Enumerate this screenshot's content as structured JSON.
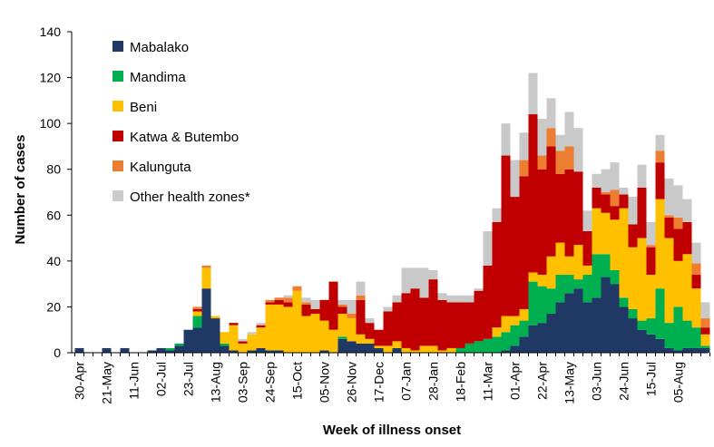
{
  "chart_data": {
    "type": "bar",
    "stacked": true,
    "title": "",
    "xlabel": "Week of illness onset",
    "ylabel": "Number of cases",
    "ylim": [
      0,
      140
    ],
    "yticks": [
      0,
      20,
      40,
      60,
      80,
      100,
      120,
      140
    ],
    "grid": false,
    "legend_position": "top-left",
    "x_tick_labels": [
      {
        "week_index": 0,
        "label": "30-Apr"
      },
      {
        "week_index": 3,
        "label": "21-May"
      },
      {
        "week_index": 6,
        "label": "11-Jun"
      },
      {
        "week_index": 9,
        "label": "02-Jul"
      },
      {
        "week_index": 12,
        "label": "23-Jul"
      },
      {
        "week_index": 15,
        "label": "13-Aug"
      },
      {
        "week_index": 18,
        "label": "03-Sep"
      },
      {
        "week_index": 21,
        "label": "24-Sep"
      },
      {
        "week_index": 24,
        "label": "15-Oct"
      },
      {
        "week_index": 27,
        "label": "05-Nov"
      },
      {
        "week_index": 30,
        "label": "26-Nov"
      },
      {
        "week_index": 33,
        "label": "17-Dec"
      },
      {
        "week_index": 36,
        "label": "07-Jan"
      },
      {
        "week_index": 39,
        "label": "28-Jan"
      },
      {
        "week_index": 42,
        "label": "18-Feb"
      },
      {
        "week_index": 45,
        "label": "11-Mar"
      },
      {
        "week_index": 48,
        "label": "01-Apr"
      },
      {
        "week_index": 51,
        "label": "22-Apr"
      },
      {
        "week_index": 54,
        "label": "13-May"
      },
      {
        "week_index": 57,
        "label": "03-Jun"
      },
      {
        "week_index": 60,
        "label": "24-Jun"
      },
      {
        "week_index": 63,
        "label": "15-Jul"
      },
      {
        "week_index": 66,
        "label": "05-Aug"
      }
    ],
    "series": [
      {
        "name": "Mabalako",
        "color": "#1f3864",
        "values": [
          2,
          0,
          0,
          2,
          0,
          2,
          0,
          0,
          1,
          2,
          1,
          3,
          10,
          11,
          28,
          15,
          3,
          1,
          0,
          1,
          2,
          1,
          1,
          0,
          0,
          0,
          0,
          1,
          0,
          6,
          5,
          4,
          4,
          2,
          0,
          2,
          0,
          0,
          0,
          0,
          0,
          0,
          0,
          0,
          0,
          0,
          0,
          1,
          3,
          7,
          12,
          13,
          17,
          22,
          26,
          28,
          22,
          24,
          33,
          30,
          20,
          15,
          10,
          8,
          6,
          2,
          1,
          2,
          2,
          2
        ]
      },
      {
        "name": "Mandima",
        "color": "#00b050",
        "values": [
          0,
          0,
          0,
          0,
          0,
          0,
          0,
          0,
          0,
          0,
          1,
          1,
          0,
          5,
          0,
          0,
          1,
          0,
          0,
          0,
          0,
          0,
          0,
          0,
          0,
          0,
          0,
          0,
          0,
          1,
          0,
          0,
          0,
          0,
          0,
          0,
          0,
          0,
          0,
          0,
          0,
          0,
          2,
          4,
          5,
          6,
          7,
          8,
          9,
          7,
          19,
          16,
          11,
          12,
          8,
          4,
          12,
          19,
          10,
          6,
          4,
          4,
          4,
          7,
          22,
          11,
          19,
          12,
          9,
          1
        ]
      },
      {
        "name": "Beni",
        "color": "#ffc000",
        "values": [
          0,
          0,
          0,
          0,
          0,
          0,
          0,
          0,
          0,
          0,
          0,
          0,
          0,
          2,
          9,
          1,
          5,
          11,
          4,
          7,
          9,
          20,
          20,
          20,
          27,
          16,
          17,
          13,
          10,
          10,
          10,
          4,
          2,
          1,
          3,
          3,
          2,
          1,
          3,
          3,
          1,
          2,
          0,
          0,
          0,
          0,
          4,
          7,
          4,
          5,
          4,
          5,
          14,
          14,
          8,
          15,
          4,
          20,
          18,
          22,
          39,
          27,
          36,
          19,
          39,
          37,
          20,
          29,
          17,
          5
        ]
      },
      {
        "name": "Katwa & Butembo",
        "color": "#c00000",
        "values": [
          0,
          0,
          0,
          0,
          0,
          0,
          0,
          0,
          0,
          0,
          0,
          0,
          0,
          1,
          0,
          0,
          0,
          1,
          1,
          0,
          1,
          1,
          2,
          2,
          0,
          5,
          2,
          9,
          21,
          3,
          0,
          15,
          7,
          7,
          15,
          17,
          24,
          27,
          21,
          29,
          22,
          20,
          20,
          18,
          22,
          32,
          46,
          70,
          52,
          58,
          69,
          46,
          48,
          30,
          38,
          32,
          15,
          9,
          8,
          6,
          6,
          10,
          22,
          12,
          16,
          9,
          14,
          14,
          6,
          3
        ]
      },
      {
        "name": "Kalunguta",
        "color": "#ed7d31",
        "values": [
          0,
          0,
          0,
          0,
          0,
          0,
          0,
          0,
          0,
          0,
          0,
          0,
          0,
          1,
          1,
          0,
          0,
          0,
          0,
          0,
          0,
          1,
          1,
          2,
          2,
          1,
          0,
          0,
          0,
          1,
          2,
          2,
          0,
          0,
          0,
          0,
          0,
          0,
          0,
          0,
          0,
          0,
          0,
          0,
          0,
          0,
          0,
          0,
          0,
          7,
          0,
          6,
          8,
          10,
          10,
          0,
          0,
          0,
          1,
          7,
          0,
          0,
          0,
          1,
          5,
          1,
          5,
          0,
          5,
          4
        ]
      },
      {
        "name": "Other health zones*",
        "color": "#c9c9c9",
        "values": [
          0,
          0,
          0,
          0,
          0,
          0,
          0,
          0,
          0,
          0,
          0,
          0,
          0,
          0,
          0,
          0,
          0,
          0,
          1,
          1,
          1,
          0,
          0,
          1,
          0,
          2,
          4,
          0,
          0,
          2,
          6,
          6,
          2,
          0,
          2,
          3,
          11,
          9,
          13,
          4,
          3,
          3,
          3,
          3,
          1,
          15,
          6,
          14,
          16,
          12,
          18,
          16,
          13,
          7,
          15,
          19,
          9,
          6,
          10,
          12,
          3,
          12,
          10,
          10,
          7,
          16,
          14,
          10,
          9,
          7
        ]
      }
    ]
  }
}
